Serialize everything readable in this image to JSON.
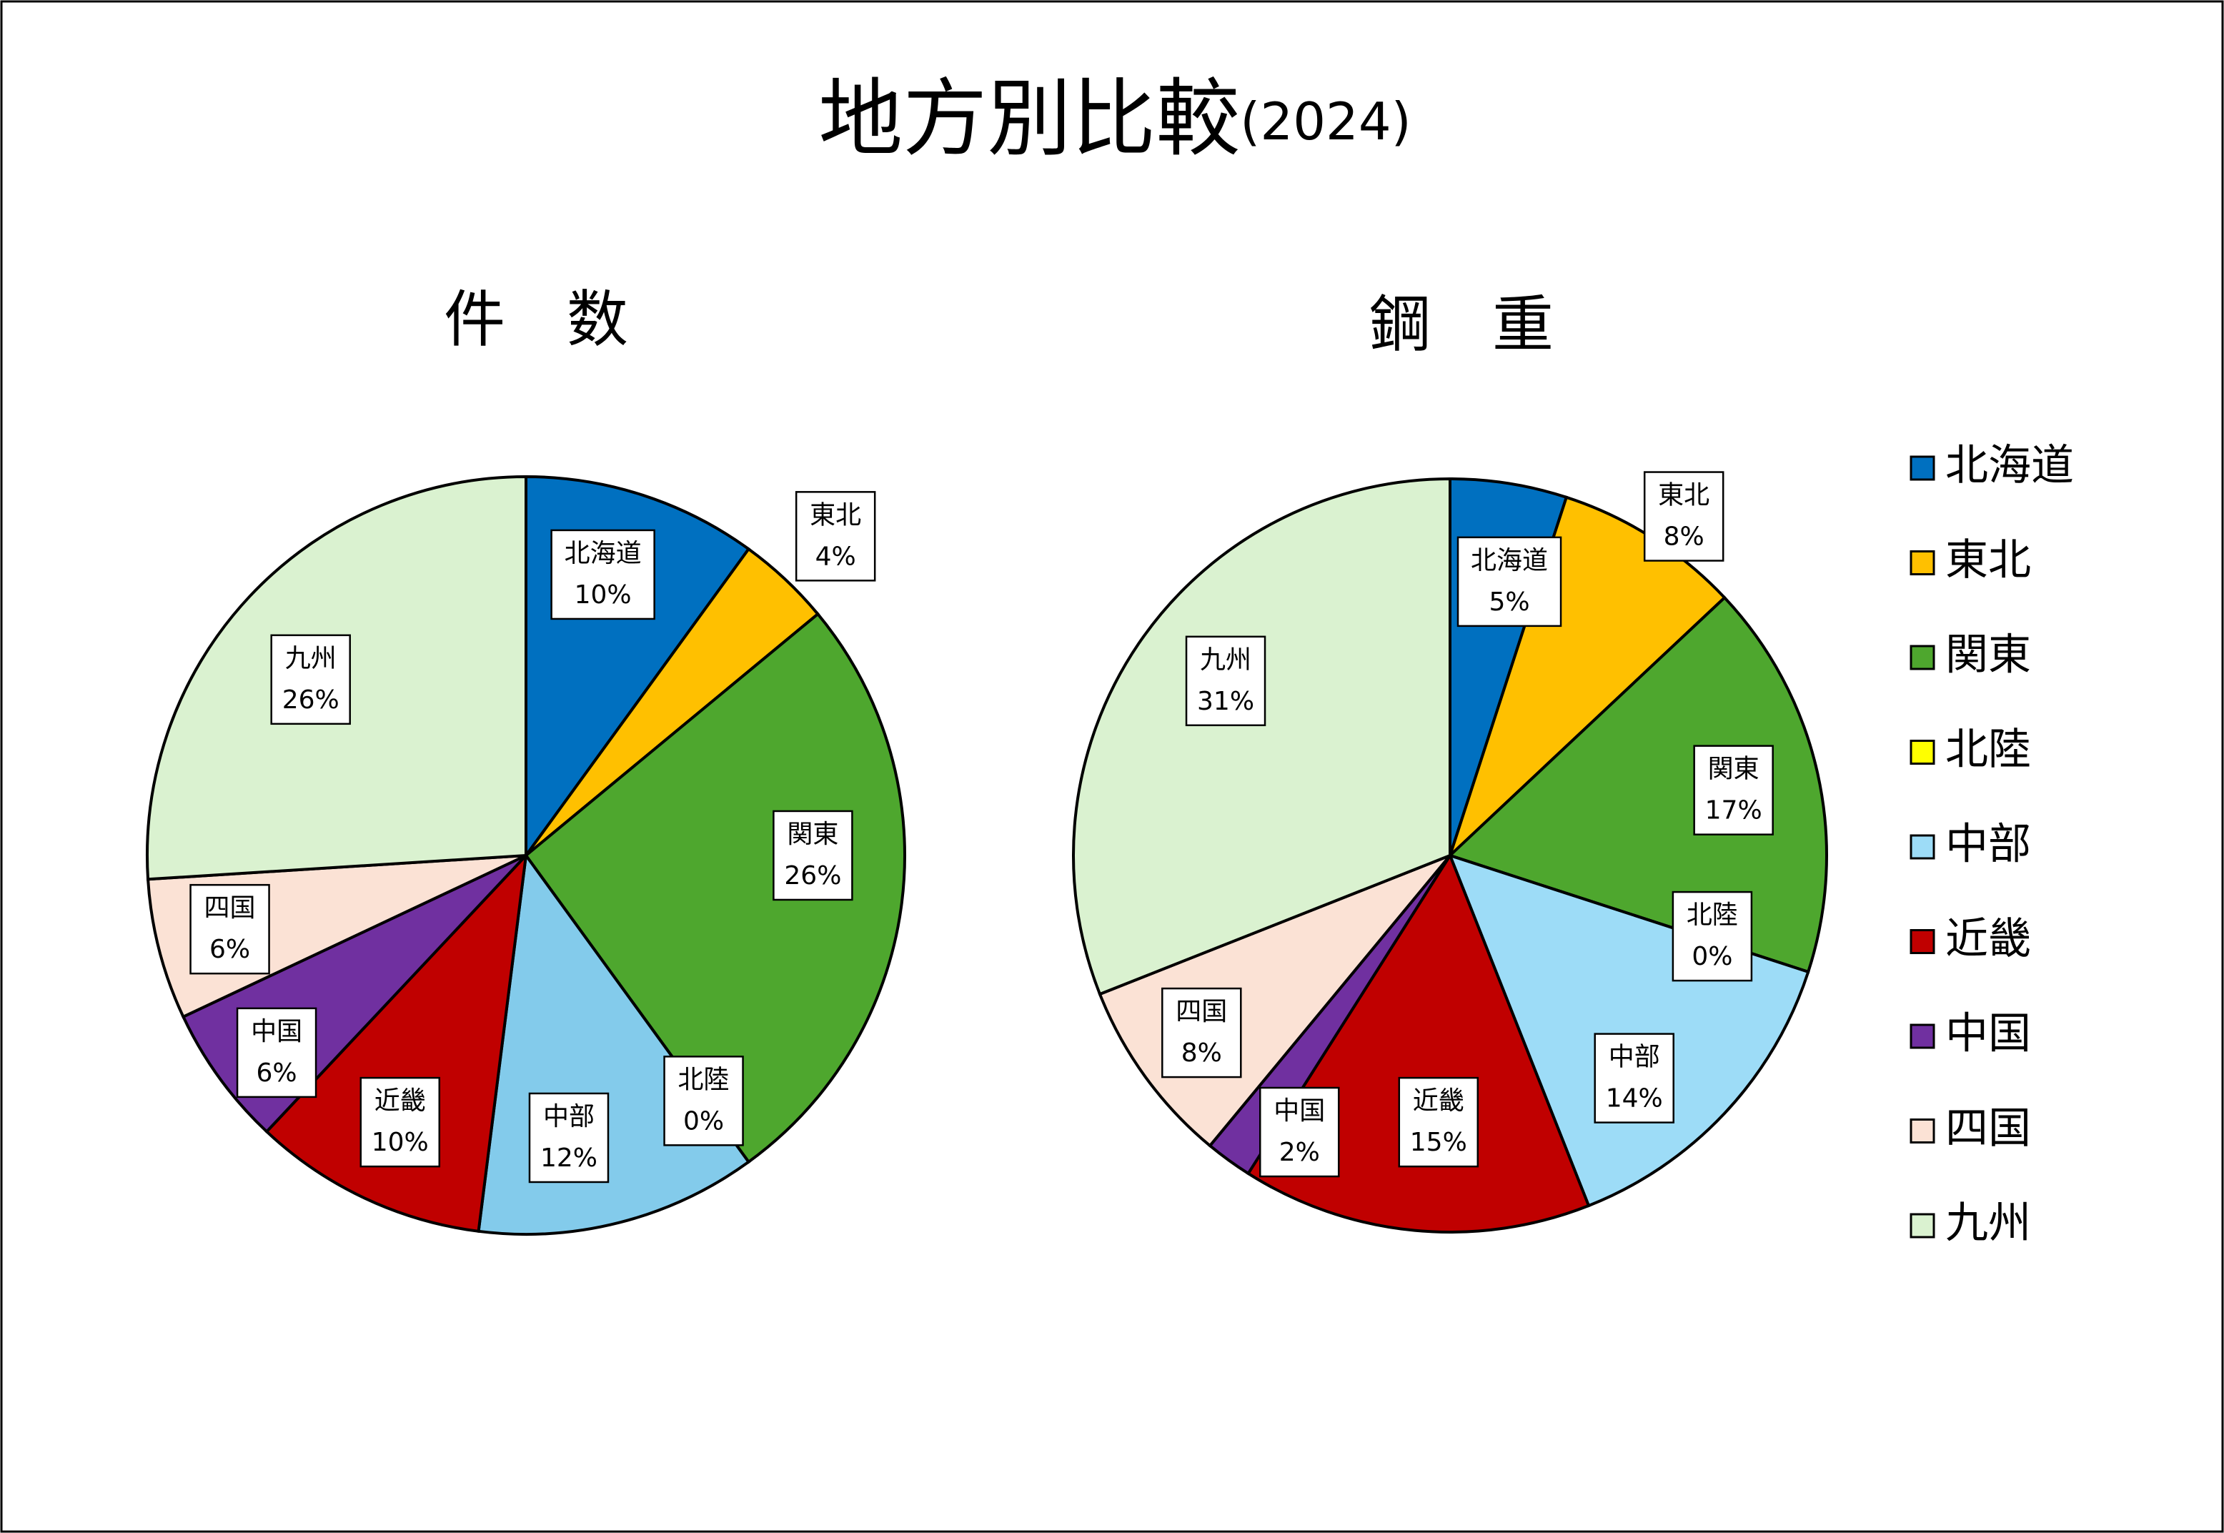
{
  "chart_data": [
    {
      "type": "pie",
      "title": "地方別比較",
      "subtitle": "(2024)",
      "chart_title": "件　数",
      "categories": [
        "北海道",
        "東北",
        "関東",
        "北陸",
        "中部",
        "近畿",
        "中国",
        "四国",
        "九州"
      ],
      "values": [
        10,
        4,
        26,
        0,
        12,
        10,
        6,
        6,
        26
      ],
      "value_labels": [
        "10%",
        "4%",
        "26%",
        "0%",
        "12%",
        "10%",
        "6%",
        "6%",
        "26%"
      ],
      "colors": [
        "#0070c0",
        "#ffc000",
        "#4ea72e",
        "#ffff00",
        "#83cbeb",
        "#c00000",
        "#7030a0",
        "#fbe2d5",
        "#daf2d0"
      ]
    },
    {
      "type": "pie",
      "chart_title": "鋼　重",
      "categories": [
        "北海道",
        "東北",
        "関東",
        "北陸",
        "中部",
        "近畿",
        "中国",
        "四国",
        "九州"
      ],
      "values": [
        5,
        8,
        17,
        0,
        14,
        15,
        2,
        8,
        31
      ],
      "value_labels": [
        "5%",
        "8%",
        "17%",
        "0%",
        "14%",
        "15%",
        "2%",
        "8%",
        "31%"
      ],
      "colors": [
        "#0070c0",
        "#ffc000",
        "#4ea72e",
        "#ffff00",
        "#9ddcf7",
        "#c00000",
        "#7030a0",
        "#fbe2d5",
        "#daf2d0"
      ],
      "legend": "right"
    }
  ]
}
